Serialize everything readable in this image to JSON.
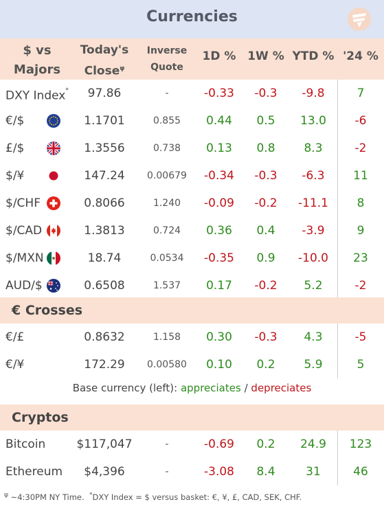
{
  "title": "Currencies",
  "headers": {
    "pair": "$ vs Majors",
    "close": "Today's Close",
    "close_sup": "ψ",
    "inverse": "Inverse Quote",
    "d1": "1D %",
    "w1": "1W %",
    "ytd": "YTD %",
    "y24": "'24 %"
  },
  "colors": {
    "positive": "#2e8b1e",
    "negative": "#c0151b",
    "header_bg": "#fbe1d3",
    "title_bg": "#dde4f3"
  },
  "chart_data": {
    "type": "table",
    "columns": [
      "Pair",
      "Today's Close",
      "Inverse Quote",
      "1D %",
      "1W %",
      "YTD %",
      "'24 %"
    ],
    "sections": [
      {
        "name": "$ vs Majors",
        "rows": [
          {
            "name": "DXY Index",
            "sup": "*",
            "icon": "",
            "close": "97.86",
            "inverse": "-",
            "d1": "-0.33",
            "w1": "-0.3",
            "ytd": "-9.8",
            "y24": "7"
          },
          {
            "name": "€/$",
            "icon": "eu-flag-icon",
            "close": "1.1701",
            "inverse": "0.855",
            "d1": "0.44",
            "w1": "0.5",
            "ytd": "13.0",
            "y24": "-6"
          },
          {
            "name": "£/$",
            "icon": "uk-flag-icon",
            "close": "1.3556",
            "inverse": "0.738",
            "d1": "0.13",
            "w1": "0.8",
            "ytd": "8.3",
            "y24": "-2"
          },
          {
            "name": "$/¥",
            "icon": "japan-flag-icon",
            "close": "147.24",
            "inverse": "0.00679",
            "d1": "-0.34",
            "w1": "-0.3",
            "ytd": "-6.3",
            "y24": "11"
          },
          {
            "name": "$/CHF",
            "icon": "swiss-flag-icon",
            "close": "0.8066",
            "inverse": "1.240",
            "d1": "-0.09",
            "w1": "-0.2",
            "ytd": "-11.1",
            "y24": "8"
          },
          {
            "name": "$/CAD",
            "icon": "canada-flag-icon",
            "close": "1.3813",
            "inverse": "0.724",
            "d1": "0.36",
            "w1": "0.4",
            "ytd": "-3.9",
            "y24": "9"
          },
          {
            "name": "$/MXN",
            "icon": "mexico-flag-icon",
            "close": "18.74",
            "inverse": "0.0534",
            "d1": "-0.35",
            "w1": "0.9",
            "ytd": "-10.0",
            "y24": "23"
          },
          {
            "name": "AUD/$",
            "icon": "australia-flag-icon",
            "close": "0.6508",
            "inverse": "1.537",
            "d1": "0.17",
            "w1": "-0.2",
            "ytd": "5.2",
            "y24": "-2"
          }
        ]
      },
      {
        "name": "€ Crosses",
        "rows": [
          {
            "name": "€/£",
            "icon": "",
            "close": "0.8632",
            "inverse": "1.158",
            "d1": "0.30",
            "w1": "-0.3",
            "ytd": "4.3",
            "y24": "-5"
          },
          {
            "name": "€/¥",
            "icon": "",
            "close": "172.29",
            "inverse": "0.00580",
            "d1": "0.10",
            "w1": "0.2",
            "ytd": "5.9",
            "y24": "5"
          }
        ]
      },
      {
        "name": "Cryptos",
        "rows": [
          {
            "name": "Bitcoin",
            "icon": "",
            "close": "$117,047",
            "inverse": "-",
            "d1": "-0.69",
            "w1": "0.2",
            "ytd": "24.9",
            "y24": "123"
          },
          {
            "name": "Ethereum",
            "icon": "",
            "close": "$4,396",
            "inverse": "-",
            "d1": "-3.08",
            "w1": "8.4",
            "ytd": "31",
            "y24": "46"
          }
        ]
      }
    ]
  },
  "legend": {
    "prefix": "Base currency (left):",
    "appreciates": "appreciates",
    "sep": "/",
    "depreciates": "depreciates"
  },
  "footnote": {
    "sym1": "ψ",
    "text1": "~4:30PM NY Time.",
    "sym2": "*",
    "text2": "DXY Index = $ versus basket: €, ¥, £, CAD, SEK, CHF."
  }
}
